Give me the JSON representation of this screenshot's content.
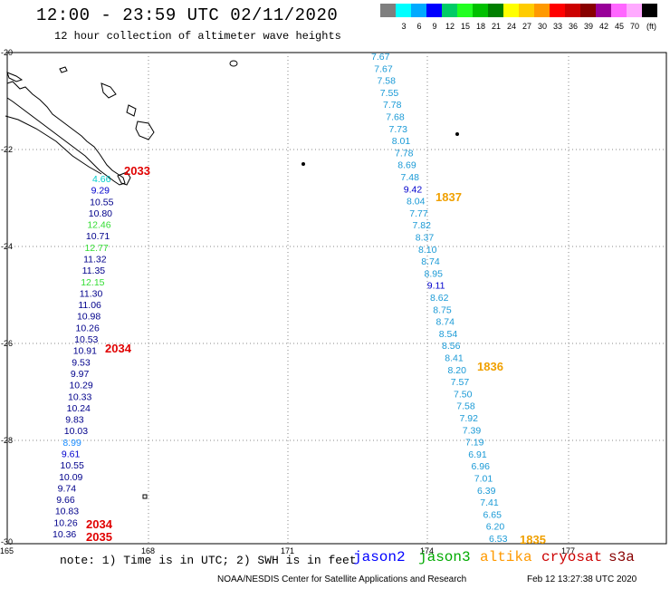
{
  "header": {
    "title": "12:00 - 23:59 UTC 02/11/2020",
    "subtitle": "12 hour collection of altimeter wave heights"
  },
  "scale": {
    "unit": "(ft)",
    "swatches": [
      {
        "color": "#7f7f7f",
        "label": ""
      },
      {
        "color": "#00ffff",
        "label": "3"
      },
      {
        "color": "#00aaff",
        "label": "6"
      },
      {
        "color": "#0000ff",
        "label": "9"
      },
      {
        "color": "#00cc66",
        "label": "12"
      },
      {
        "color": "#22ff22",
        "label": "15"
      },
      {
        "color": "#00c000",
        "label": "18"
      },
      {
        "color": "#007f00",
        "label": "21"
      },
      {
        "color": "#ffff00",
        "label": "24"
      },
      {
        "color": "#ffcc00",
        "label": "27"
      },
      {
        "color": "#ff9900",
        "label": "30"
      },
      {
        "color": "#ff0000",
        "label": "33"
      },
      {
        "color": "#cc0000",
        "label": "36"
      },
      {
        "color": "#880000",
        "label": "39"
      },
      {
        "color": "#990099",
        "label": "42"
      },
      {
        "color": "#ff66ff",
        "label": "45"
      },
      {
        "color": "#ffaaff",
        "label": "70"
      },
      {
        "color": "#000000",
        "label": ""
      }
    ]
  },
  "map": {
    "lat_labels": [
      "-20",
      "-22",
      "-24",
      "-26",
      "-28",
      "-30"
    ],
    "lon_labels": [
      "165",
      "168",
      "171",
      "174",
      "177"
    ]
  },
  "tracks": {
    "west": {
      "color": "#00008b",
      "values": [
        "4.66",
        "9.29",
        "10.55",
        "10.80",
        "12.46",
        "10.71",
        "12.77",
        "11.32",
        "11.35",
        "12.15",
        "11.30",
        "11.06",
        "10.98",
        "10.26",
        "10.53",
        "10.91",
        "9.53",
        "9.97",
        "10.29",
        "10.33",
        "10.24",
        "9.83",
        "10.03",
        "8.99",
        "9.61",
        "10.55",
        "10.09",
        "9.74",
        "9.66",
        "10.83",
        "10.26",
        "10.36"
      ],
      "value_colors": [
        "#00cccc",
        "#0000cd",
        "#00008b",
        "#00008b",
        "#33dd33",
        "#00008b",
        "#33dd33",
        "#00008b",
        "#00008b",
        "#33dd33",
        "#00008b",
        "#00008b",
        "#00008b",
        "#00008b",
        "#00008b",
        "#00008b",
        "#00008b",
        "#00008b",
        "#00008b",
        "#00008b",
        "#00008b",
        "#00008b",
        "#00008b",
        "#1a8cff",
        "#0000cd",
        "#00008b",
        "#00008b",
        "#00008b",
        "#00008b",
        "#00008b",
        "#00008b",
        "#00008b"
      ],
      "passes": [
        {
          "label": "2033",
          "color": "#e00000"
        },
        {
          "label": "2034",
          "color": "#e00000"
        },
        {
          "label": "2034",
          "color": "#e00000"
        },
        {
          "label": "2035",
          "color": "#e00000"
        }
      ]
    },
    "east": {
      "values": [
        "7.67",
        "7.67",
        "7.58",
        "7.55",
        "7.78",
        "7.68",
        "7.73",
        "8.01",
        "7.78",
        "8.69",
        "7.48",
        "9.42",
        "8.04",
        "7.77",
        "7.82",
        "8.37",
        "8.10",
        "8.74",
        "8.95",
        "9.11",
        "8.62",
        "8.75",
        "8.74",
        "8.54",
        "8.56",
        "8.41",
        "8.20",
        "7.57",
        "7.50",
        "7.58",
        "7.92",
        "7.39",
        "7.19",
        "6.91",
        "6.96",
        "7.01",
        "6.39",
        "7.41",
        "6.65",
        "6.20",
        "6.53"
      ],
      "value_colors": [
        "#1a9ad6",
        "#1a9ad6",
        "#1a9ad6",
        "#1a9ad6",
        "#1a9ad6",
        "#1a9ad6",
        "#1a9ad6",
        "#1a9ad6",
        "#1a9ad6",
        "#1a9ad6",
        "#1a9ad6",
        "#0000cd",
        "#1a9ad6",
        "#1a9ad6",
        "#1a9ad6",
        "#1a9ad6",
        "#1a9ad6",
        "#1a9ad6",
        "#1a9ad6",
        "#0000cd",
        "#1a9ad6",
        "#1a9ad6",
        "#1a9ad6",
        "#1a9ad6",
        "#1a9ad6",
        "#1a9ad6",
        "#1a9ad6",
        "#1a9ad6",
        "#1a9ad6",
        "#1a9ad6",
        "#1a9ad6",
        "#1a9ad6",
        "#1a9ad6",
        "#1a9ad6",
        "#1a9ad6",
        "#1a9ad6",
        "#1a9ad6",
        "#1a9ad6",
        "#1a9ad6",
        "#1a9ad6",
        "#1a9ad6"
      ],
      "passes": [
        {
          "label": "1837",
          "color": "#f0a000"
        },
        {
          "label": "1836",
          "color": "#f0a000"
        },
        {
          "label": "1835",
          "color": "#f0a000"
        }
      ]
    }
  },
  "legend": {
    "note": "note: 1) Time is in UTC; 2) SWH is in feet",
    "missions": [
      {
        "label": "jason2",
        "color": "#0000ff"
      },
      {
        "label": "jason3",
        "color": "#00aa00"
      },
      {
        "label": "altika",
        "color": "#ff9900"
      },
      {
        "label": "cryosat",
        "color": "#cc0000"
      },
      {
        "label": "s3a",
        "color": "#880000"
      }
    ]
  },
  "footer": {
    "credit": "NOAA/NESDIS Center for Satellite Applications and Research",
    "timestamp": "Feb 12 13:27:38 UTC 2020"
  }
}
